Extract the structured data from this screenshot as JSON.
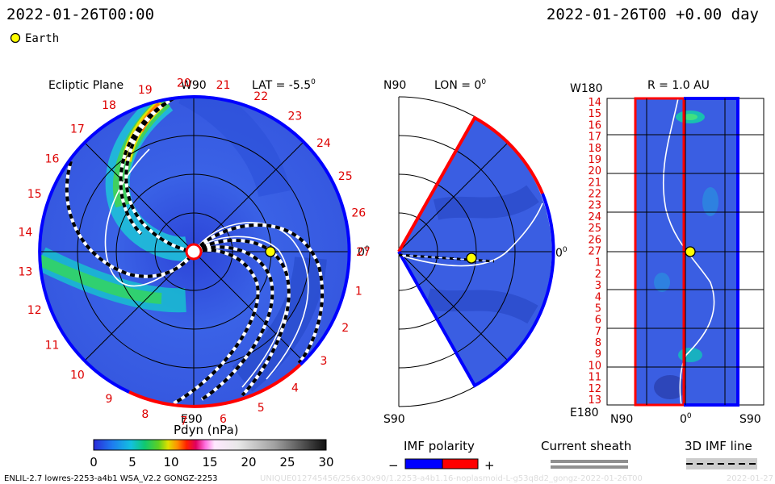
{
  "header": {
    "timestamp_left": "2022-01-26T00:00",
    "timestamp_right": "2022-01-26T00 +0.00 day",
    "legend_label": "Earth"
  },
  "colors": {
    "positive_polarity": "#ff0000",
    "negative_polarity": "#0000ff",
    "earth_marker": "#ffff00",
    "background_plasma": "#3b5fe0",
    "sheath": "#909090"
  },
  "ecliptic_panel": {
    "title": "Ecliptic Plane",
    "lat_label": "LAT = -5.5",
    "lat_degree": "0",
    "top_label": "W90",
    "bottom_label": "E90",
    "right_label": "0",
    "right_degree": "0",
    "clock_labels": [
      "20",
      "21",
      "22",
      "23",
      "24",
      "25",
      "26",
      "27",
      "1",
      "2",
      "3",
      "4",
      "5",
      "6",
      "7",
      "8",
      "9",
      "10",
      "11",
      "12",
      "13",
      "14",
      "15",
      "16",
      "17",
      "18",
      "19"
    ]
  },
  "meridional_panel": {
    "top_label": "N90",
    "lon_label": "LON = 0",
    "lon_degree": "0",
    "right_label": "0",
    "right_degree": "0",
    "bottom_label": "S90"
  },
  "radial_panel": {
    "top_left_label": "W180",
    "r_label": "R = 1.0 AU",
    "bottom_left_label": "E180",
    "bottom_labels": [
      "N90",
      "0",
      "S90"
    ],
    "bottom_degree": "0",
    "row_labels": [
      "14",
      "15",
      "16",
      "17",
      "18",
      "19",
      "20",
      "21",
      "22",
      "23",
      "24",
      "25",
      "26",
      "27",
      "1",
      "2",
      "3",
      "4",
      "5",
      "6",
      "7",
      "8",
      "9",
      "10",
      "11",
      "12",
      "13"
    ]
  },
  "colorbar": {
    "title": "Pdyn (nPa)",
    "ticks": [
      "0",
      "5",
      "10",
      "15",
      "20",
      "25",
      "30"
    ]
  },
  "legends": {
    "imf_polarity": "IMF polarity",
    "minus": "−",
    "plus": "+",
    "current_sheath": "Current sheath",
    "imf_line": "3D IMF line"
  },
  "footer": {
    "model_info": "ENLIL-2.7 lowres-2253-a4b1 WSA_V2.2 GONGZ-2253",
    "run_info": "UNIQUE012745456/256x30x90/1.2253-a4b1.16-noplasmoid-L-g53q8d2_gongz-2022-01-26T00",
    "date_info": "2022-01-27"
  }
}
